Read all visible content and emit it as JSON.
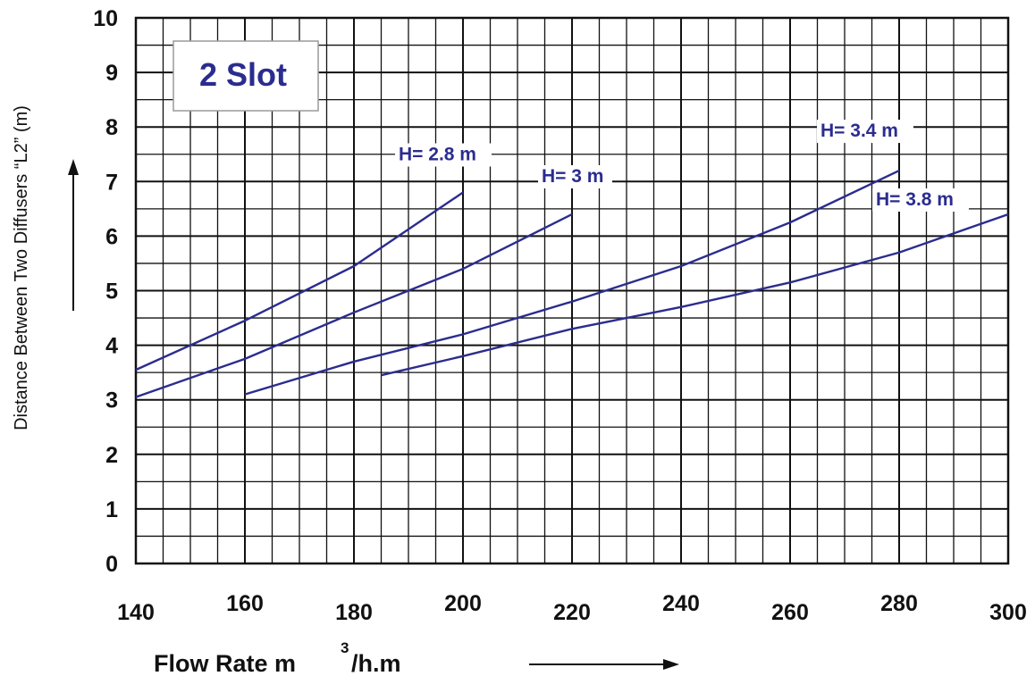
{
  "chart_data": {
    "type": "line",
    "panel_label": "2 Slot",
    "xlabel": "Flow Rate  m",
    "xlabel_sup": "3",
    "xlabel_suffix": "/h.m",
    "ylabel": "Distance Between Two Diffusers “L2” (m)",
    "xlim": [
      140,
      300
    ],
    "ylim": [
      0,
      10
    ],
    "x_ticks": [
      140,
      160,
      180,
      200,
      220,
      240,
      260,
      280,
      300
    ],
    "y_ticks": [
      0,
      1,
      2,
      3,
      4,
      5,
      6,
      7,
      8,
      9,
      10
    ],
    "grid": true,
    "series": [
      {
        "name": "H= 2.8 m",
        "color": "#2b2c8f",
        "x": [
          140,
          160,
          180,
          200
        ],
        "y": [
          3.55,
          4.45,
          5.45,
          6.8
        ]
      },
      {
        "name": "H= 3 m",
        "color": "#2b2c8f",
        "x": [
          140,
          160,
          180,
          200,
          220
        ],
        "y": [
          3.05,
          3.75,
          4.6,
          5.4,
          6.4
        ]
      },
      {
        "name": "H= 3.4 m",
        "color": "#2b2c8f",
        "x": [
          160,
          180,
          200,
          220,
          240,
          260,
          280
        ],
        "y": [
          3.1,
          3.7,
          4.2,
          4.8,
          5.45,
          6.25,
          7.2
        ]
      },
      {
        "name": "H= 3.8 m",
        "color": "#2b2c8f",
        "x": [
          185,
          200,
          220,
          240,
          260,
          280,
          300
        ],
        "y": [
          3.45,
          3.8,
          4.3,
          4.7,
          5.15,
          5.7,
          6.4
        ]
      }
    ]
  }
}
